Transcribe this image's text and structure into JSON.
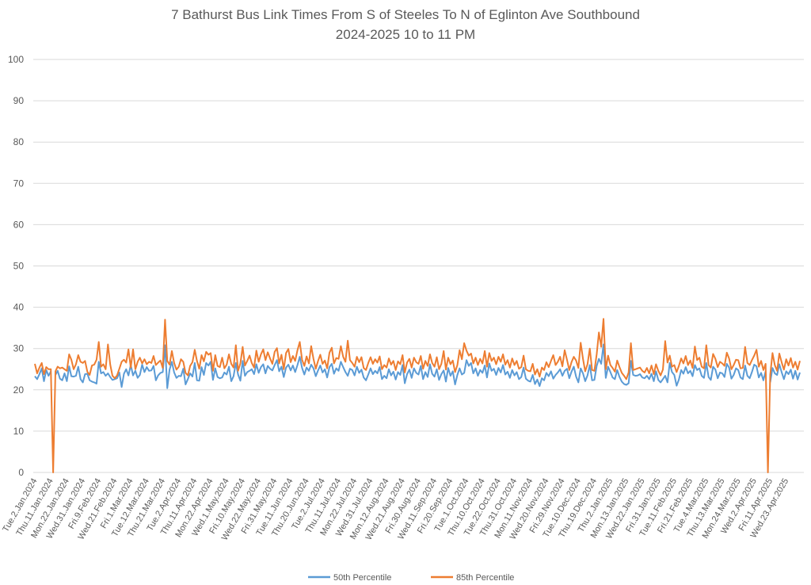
{
  "chart_data": {
    "type": "line",
    "title": "7 Bathurst Bus Link Times From S of Steeles To N of Eglinton Ave Southbound",
    "subtitle": "2024-2025 10 to 11 PM",
    "xlabel": "",
    "ylabel": "",
    "ylim": [
      0,
      100
    ],
    "y_ticks": [
      0,
      10,
      20,
      30,
      40,
      50,
      60,
      70,
      80,
      90,
      100
    ],
    "grid": true,
    "legend_position": "bottom",
    "x_tick_every": 7,
    "x_tick_labels": [
      "Tue.2.Jan.2024",
      "Thu.11.Jan.2024",
      "Mon.22.Jan.2024",
      "Wed.31.Jan.2024",
      "Fri.9.Feb.2024",
      "Wed.21.Feb.2024",
      "Fri.1.Mar.2024",
      "Tue.12.Mar.2024",
      "Thu.21.Mar.2024",
      "Tue.2.Apr.2024",
      "Thu.11.Apr.2024",
      "Mon.22.Apr.2024",
      "Wed.1.May.2024",
      "Fri.10.May.2024",
      "Wed.22.May.2024",
      "Fri.31.May.2024",
      "Tue.11.Jun.2024",
      "Thu.20.Jun.2024",
      "Tue.2.Jul.2024",
      "Thu.11.Jul.2024",
      "Mon.22.Jul.2024",
      "Wed.31.Jul.2024",
      "Mon.12.Aug.2024",
      "Wed.21.Aug.2024",
      "Fri.30.Aug.2024",
      "Wed.11.Sep.2024",
      "Fri.20.Sep.2024",
      "Tue.1.Oct.2024",
      "Thu.10.Oct.2024",
      "Tue.22.Oct.2024",
      "Thu.31.Oct.2024",
      "Mon.11.Nov.2024",
      "Wed.20.Nov.2024",
      "Fri.29.Nov.2024",
      "Tue.10.Dec.2024",
      "Thu.19.Dec.2024",
      "Thu.2.Jan.2025",
      "Mon.13.Jan.2025",
      "Wed.22.Jan.2025",
      "Fri.31.Jan.2025",
      "Tue.11.Feb.2025",
      "Fri.21.Feb.2025",
      "Tue.4.Mar.2025",
      "Thu.13.Mar.2025",
      "Mon.24.Mar.2025",
      "Wed.2.Apr.2025",
      "Fri.11.Apr.2025",
      "Wed.23.Apr.2025"
    ],
    "series": [
      {
        "name": "50th Percentile",
        "color": "#5B9BD5",
        "values": [
          23.3,
          22.6,
          23.8,
          25.2,
          22.1,
          24.8,
          23.4,
          24.5,
          null,
          23.6,
          24.6,
          22.7,
          22.3,
          24.0,
          22.1,
          25.7,
          23.3,
          23.2,
          23.4,
          25.6,
          22.6,
          21.8,
          23.8,
          23.9,
          22.3,
          22.0,
          21.8,
          21.5,
          26.8,
          24.0,
          24.3,
          23.4,
          24.0,
          23.1,
          22.4,
          22.6,
          22.8,
          24.2,
          20.7,
          23.9,
          25.0,
          23.5,
          26.0,
          23.5,
          24.6,
          22.9,
          23.6,
          26.1,
          24.3,
          25.5,
          24.6,
          24.7,
          25.8,
          22.3,
          23.5,
          24.1,
          24.3,
          30.8,
          20.4,
          24.9,
          26.8,
          24.2,
          22.9,
          23.4,
          23.3,
          25.1,
          21.3,
          22.6,
          24.0,
          23.2,
          26.5,
          22.3,
          22.2,
          25.5,
          23.6,
          26.5,
          25.9,
          26.8,
          22.4,
          25.2,
          23.1,
          22.8,
          23.0,
          24.2,
          23.7,
          25.6,
          22.1,
          23.3,
          26.5,
          23.7,
          22.2,
          27.0,
          23.4,
          24.3,
          24.6,
          25.0,
          23.8,
          26.2,
          24.1,
          25.5,
          26.2,
          24.0,
          25.8,
          25.1,
          24.7,
          26.0,
          27.2,
          24.5,
          25.6,
          23.1,
          25.4,
          26.1,
          24.7,
          25.9,
          24.3,
          26.0,
          28.0,
          25.3,
          23.7,
          25.4,
          24.6,
          26.1,
          25.2,
          23.3,
          24.7,
          25.9,
          24.2,
          25.0,
          23.0,
          25.5,
          26.3,
          23.9,
          25.2,
          24.6,
          26.8,
          25.5,
          24.3,
          23.4,
          25.1,
          24.8,
          23.5,
          25.6,
          24.1,
          24.9,
          23.0,
          22.3,
          23.7,
          25.2,
          23.8,
          24.6,
          24.0,
          25.5,
          22.6,
          23.4,
          22.8,
          25.0,
          23.5,
          24.4,
          22.5,
          24.3,
          23.6,
          26.0,
          21.6,
          23.8,
          24.9,
          22.9,
          25.2,
          24.1,
          23.7,
          25.8,
          22.6,
          24.3,
          23.1,
          26.2,
          23.9,
          23.2,
          25.0,
          22.4,
          23.8,
          24.7,
          22.0,
          25.3,
          23.4,
          24.5,
          21.3,
          23.6,
          25.2,
          23.7,
          24.1,
          27.2,
          25.8,
          26.5,
          24.0,
          25.2,
          23.4,
          24.8,
          24.1,
          25.9,
          23.0,
          26.4,
          24.6,
          25.1,
          23.6,
          25.3,
          24.2,
          26.0,
          23.7,
          24.4,
          22.9,
          24.8,
          23.5,
          24.3,
          22.6,
          23.1,
          25.4,
          22.7,
          22.2,
          22.0,
          23.6,
          21.4,
          22.5,
          20.9,
          22.8,
          22.3,
          24.1,
          23.3,
          24.5,
          22.7,
          23.6,
          24.2,
          25.0,
          23.4,
          24.6,
          25.1,
          22.8,
          24.4,
          25.6,
          23.2,
          21.8,
          25.2,
          24.0,
          22.1,
          23.5,
          26.0,
          22.3,
          22.4,
          25.8,
          27.5,
          26.3,
          31.0,
          22.9,
          25.6,
          24.3,
          23.0,
          22.6,
          24.8,
          23.1,
          22.0,
          21.4,
          21.2,
          21.6,
          27.0,
          23.6,
          23.4,
          23.5,
          23.8,
          23.0,
          22.8,
          23.4,
          22.6,
          23.9,
          22.1,
          24.5,
          22.4,
          21.8,
          22.6,
          23.4,
          21.8,
          26.5,
          24.3,
          23.6,
          21.0,
          22.5,
          24.8,
          23.9,
          25.5,
          24.0,
          24.6,
          23.3,
          26.0,
          24.8,
          25.2,
          23.4,
          22.9,
          26.5,
          23.1,
          22.4,
          25.6,
          24.9,
          22.8,
          24.2,
          24.0,
          23.1,
          26.3,
          25.4,
          22.7,
          23.6,
          25.2,
          24.8,
          23.0,
          22.6,
          25.9,
          23.4,
          22.8,
          24.3,
          26.1,
          25.7,
          23.0,
          24.1,
          22.3,
          24.5,
          null,
          21.8,
          25.3,
          24.0,
          23.6,
          26.2,
          24.3,
          22.6,
          24.5,
          23.8,
          24.9,
          22.7,
          24.6,
          22.5,
          24.2
        ]
      },
      {
        "name": "85th Percentile",
        "color": "#ED7D31",
        "values": [
          26.3,
          24.0,
          25.4,
          26.5,
          23.8,
          25.5,
          25.0,
          25.0,
          0,
          24.5,
          25.6,
          25.2,
          25.4,
          25.0,
          24.6,
          28.6,
          27.3,
          25.0,
          26.2,
          28.4,
          26.8,
          26.5,
          27.0,
          24.4,
          23.6,
          25.9,
          26.1,
          27.3,
          31.6,
          25.6,
          26.2,
          25.0,
          31.0,
          26.1,
          23.4,
          22.8,
          23.5,
          25.1,
          26.8,
          27.3,
          26.6,
          29.8,
          25.4,
          29.8,
          25.0,
          26.8,
          27.8,
          26.4,
          27.4,
          26.2,
          26.8,
          26.5,
          28.2,
          26.0,
          26.6,
          27.1,
          25.3,
          37.0,
          27.0,
          26.1,
          29.4,
          26.5,
          24.9,
          25.6,
          27.4,
          26.8,
          24.1,
          23.5,
          25.8,
          26.7,
          29.7,
          27.0,
          25.1,
          28.4,
          26.9,
          29.2,
          28.5,
          28.9,
          24.6,
          28.4,
          25.8,
          25.5,
          27.8,
          25.2,
          26.1,
          28.6,
          26.3,
          25.4,
          30.8,
          24.6,
          26.4,
          30.4,
          25.9,
          27.0,
          28.3,
          26.5,
          25.4,
          29.5,
          26.8,
          28.6,
          29.8,
          27.2,
          29.1,
          27.6,
          26.3,
          29.2,
          30.1,
          26.4,
          28.5,
          25.0,
          28.9,
          29.9,
          26.7,
          28.2,
          27.0,
          29.6,
          31.6,
          27.3,
          25.8,
          28.1,
          26.4,
          30.6,
          27.5,
          25.1,
          27.0,
          28.5,
          26.3,
          27.1,
          25.2,
          29.0,
          30.2,
          26.4,
          27.7,
          27.5,
          30.6,
          28.0,
          26.8,
          31.9,
          27.2,
          26.5,
          25.6,
          28.0,
          26.7,
          27.9,
          25.3,
          24.8,
          26.5,
          27.9,
          26.3,
          27.4,
          26.6,
          28.1,
          25.0,
          26.0,
          25.4,
          27.6,
          26.1,
          27.0,
          24.8,
          26.9,
          26.2,
          28.4,
          24.2,
          26.6,
          27.5,
          25.4,
          27.8,
          26.7,
          26.3,
          28.2,
          25.1,
          27.0,
          25.8,
          28.6,
          26.5,
          25.6,
          27.9,
          25.0,
          26.3,
          29.4,
          24.9,
          27.8,
          26.2,
          27.1,
          24.3,
          26.0,
          29.6,
          27.4,
          31.3,
          29.5,
          28.3,
          28.8,
          26.4,
          27.8,
          26.0,
          27.5,
          26.4,
          29.4,
          25.6,
          28.9,
          27.0,
          27.8,
          26.2,
          28.0,
          26.8,
          28.6,
          26.1,
          27.2,
          25.4,
          27.6,
          26.0,
          27.0,
          25.1,
          25.5,
          28.3,
          25.0,
          24.6,
          24.5,
          26.3,
          23.7,
          25.0,
          23.2,
          25.4,
          24.8,
          26.7,
          25.5,
          27.0,
          28.4,
          26.0,
          26.8,
          28.0,
          25.7,
          29.6,
          27.3,
          24.8,
          26.7,
          28.0,
          27.1,
          25.3,
          31.4,
          27.5,
          24.5,
          26.2,
          30.0,
          24.8,
          24.6,
          28.6,
          33.9,
          30.4,
          37.2,
          25.0,
          28.3,
          26.0,
          25.3,
          24.4,
          27.1,
          25.5,
          24.1,
          23.4,
          22.6,
          24.2,
          31.3,
          24.8,
          25.0,
          25.2,
          25.4,
          24.6,
          24.2,
          25.3,
          24.0,
          25.9,
          23.8,
          26.2,
          24.6,
          23.5,
          24.9,
          31.8,
          26.6,
          28.3,
          25.6,
          26.0,
          24.3,
          25.8,
          27.6,
          26.4,
          28.2,
          26.0,
          27.1,
          25.3,
          30.5,
          27.2,
          27.8,
          25.6,
          25.2,
          30.8,
          26.0,
          25.4,
          28.7,
          27.5,
          25.5,
          26.8,
          26.4,
          25.8,
          29.0,
          27.6,
          25.0,
          26.0,
          27.3,
          27.2,
          25.2,
          25.3,
          30.4,
          26.5,
          26.0,
          27.2,
          28.3,
          29.7,
          25.6,
          27.0,
          24.8,
          26.3,
          0,
          23.6,
          28.9,
          26.0,
          24.6,
          28.8,
          26.7,
          24.9,
          27.4,
          25.9,
          27.7,
          25.4,
          26.8,
          24.9,
          27.0
        ]
      }
    ]
  }
}
